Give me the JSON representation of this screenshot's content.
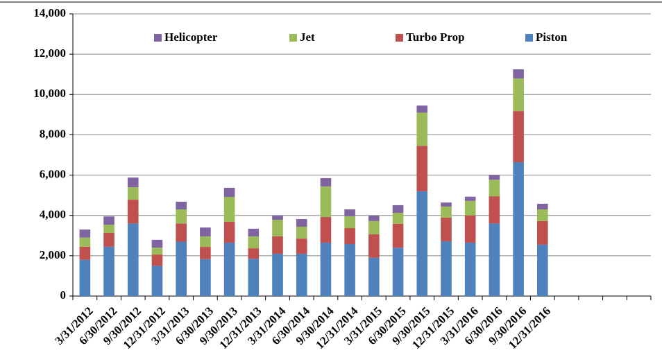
{
  "chart_data": {
    "type": "bar",
    "stacked": true,
    "categories": [
      "3/31/2012",
      "6/30/2012",
      "9/30/2012",
      "12/31/2012",
      "3/31/2013",
      "6/30/2013",
      "9/30/2013",
      "12/31/2013",
      "3/31/2014",
      "6/30/2014",
      "9/30/2014",
      "12/31/2014",
      "3/31/2015",
      "6/30/2015",
      "9/30/2015",
      "12/31/2015",
      "3/31/2016",
      "6/30/2016",
      "9/30/2016",
      "12/31/2016",
      null,
      null,
      null,
      null
    ],
    "series": [
      {
        "name": "Piston",
        "color": "#4f81bd",
        "values": [
          1800,
          2450,
          3600,
          1500,
          2700,
          1830,
          2650,
          1850,
          2100,
          2100,
          2650,
          2580,
          1900,
          2400,
          5200,
          2720,
          2650,
          3600,
          6640,
          2550,
          null,
          null,
          null,
          null
        ]
      },
      {
        "name": "Turbo Prop",
        "color": "#c0504d",
        "values": [
          650,
          680,
          1180,
          560,
          900,
          610,
          1030,
          520,
          860,
          750,
          1270,
          790,
          1160,
          1180,
          2250,
          1170,
          1350,
          1350,
          2540,
          1170,
          null,
          null,
          null,
          null
        ]
      },
      {
        "name": "Jet",
        "color": "#9bbb59",
        "values": [
          450,
          410,
          620,
          340,
          700,
          520,
          1240,
          590,
          820,
          590,
          1520,
          590,
          660,
          550,
          1650,
          550,
          720,
          820,
          1620,
          580,
          null,
          null,
          null,
          null
        ]
      },
      {
        "name": "Helicopter",
        "color": "#8064a2",
        "values": [
          400,
          410,
          480,
          390,
          380,
          440,
          450,
          380,
          210,
          380,
          410,
          340,
          270,
          380,
          350,
          200,
          210,
          240,
          450,
          280,
          null,
          null,
          null,
          null
        ]
      }
    ],
    "ylim": [
      0,
      14000
    ],
    "yticks": [
      0,
      {
        "value": 2000,
        "label": "2,000"
      },
      {
        "value": 4000,
        "label": "4,000"
      },
      {
        "value": 6000,
        "label": "6,000"
      },
      {
        "value": 8000,
        "label": "8,000"
      },
      {
        "value": 10000,
        "label": "10,000"
      },
      {
        "value": 12000,
        "label": "12,000"
      },
      {
        "value": 14000,
        "label": "14,000"
      }
    ],
    "grid": true,
    "legend": "top"
  }
}
